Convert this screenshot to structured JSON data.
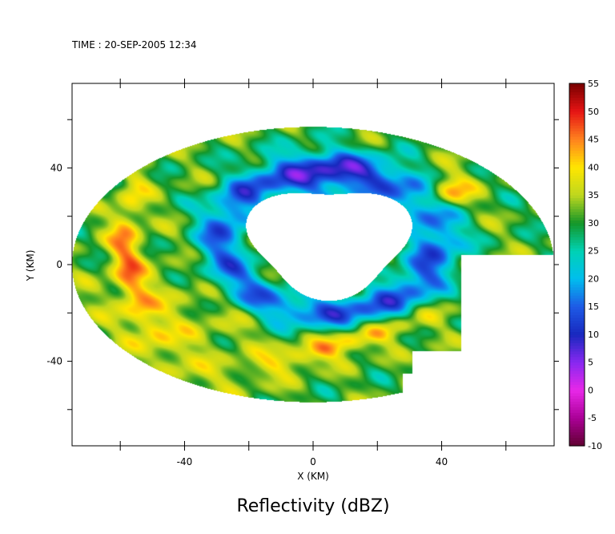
{
  "chart_data": {
    "type": "heatmap",
    "time_label": "TIME : 20-SEP-2005 12:34",
    "title": "Reflectivity (dBZ)",
    "xlabel": "X (KM)",
    "ylabel": "Y (KM)",
    "xlim": [
      -75,
      75
    ],
    "ylim": [
      -75,
      75
    ],
    "x_ticks": [
      -40,
      0,
      40
    ],
    "y_ticks": [
      -40,
      0,
      40
    ],
    "colorbar": {
      "min": -10,
      "max": 55,
      "ticks": [
        -10,
        -5,
        0,
        5,
        10,
        15,
        20,
        25,
        30,
        35,
        40,
        45,
        50,
        55
      ]
    },
    "field": {
      "coverage": "circle of radius ~72 km centered at (0, 0), cut off for x > 45 and south-east of (30, -40); no-echo eye region around (5, 15)",
      "background_dbz": 31,
      "features": [
        {
          "name": "inner eyewall",
          "center": [
            5,
            10
          ],
          "radius": 32,
          "dbz": 12
        },
        {
          "name": "eyewall cores",
          "center": [
            5,
            30
          ],
          "radius": 18,
          "dbz": 7
        },
        {
          "name": "north-east core",
          "center": [
            42,
            30
          ],
          "radius": 7,
          "dbz": 45
        },
        {
          "name": "south-east band",
          "center": [
            10,
            -40
          ],
          "dbz": 46
        },
        {
          "name": "west band",
          "center": [
            -55,
            5
          ],
          "dbz": 45
        }
      ]
    }
  }
}
